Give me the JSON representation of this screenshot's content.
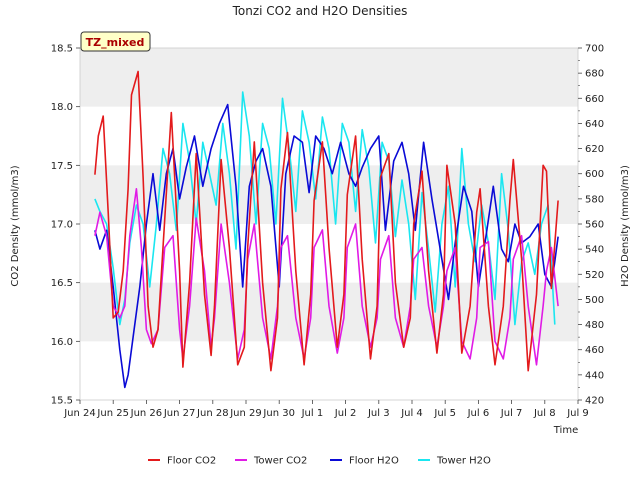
{
  "chart_data": {
    "type": "line",
    "title": "Tonzi CO2 and H2O Densities",
    "badge": "TZ_mixed",
    "xlabel": "Time",
    "ylabel_left": "CO2 Density (mmol/m3)",
    "ylabel_right": "H2O Density (mmol/m3)",
    "x_ticks": [
      "Jun 24",
      "Jun 25",
      "Jun 26",
      "Jun 27",
      "Jun 28",
      "Jun 29",
      "Jun 30",
      "Jul 1",
      "Jul 2",
      "Jul 3",
      "Jul 4",
      "Jul 5",
      "Jul 6",
      "Jul 7",
      "Jul 8",
      "Jul 9"
    ],
    "x_range_days": [
      0,
      15
    ],
    "ylim_left": [
      15.5,
      18.5
    ],
    "ylim_right": [
      420,
      700
    ],
    "y_ticks_left": [
      "15.5",
      "16.0",
      "16.5",
      "17.0",
      "17.5",
      "18.0",
      "18.5"
    ],
    "y_ticks_right": [
      "420",
      "440",
      "460",
      "480",
      "500",
      "520",
      "540",
      "560",
      "580",
      "600",
      "620",
      "640",
      "660",
      "680",
      "700"
    ],
    "band_ranges_left": [
      [
        16.0,
        16.5
      ],
      [
        17.0,
        17.5
      ],
      [
        18.0,
        18.5
      ]
    ],
    "series": [
      {
        "name": "Floor CO2",
        "axis": "left",
        "color": "#e31a1c",
        "x": [
          0.45,
          0.55,
          0.7,
          0.85,
          1.0,
          1.15,
          1.3,
          1.45,
          1.55,
          1.75,
          1.9,
          2.05,
          2.2,
          2.35,
          2.5,
          2.75,
          3.0,
          3.1,
          3.3,
          3.5,
          3.75,
          3.95,
          4.05,
          4.25,
          4.5,
          4.75,
          4.95,
          5.05,
          5.25,
          5.5,
          5.75,
          5.95,
          6.05,
          6.25,
          6.5,
          6.75,
          6.95,
          7.05,
          7.3,
          7.5,
          7.75,
          7.95,
          8.05,
          8.3,
          8.5,
          8.75,
          8.95,
          9.05,
          9.3,
          9.5,
          9.75,
          9.95,
          10.05,
          10.3,
          10.5,
          10.75,
          10.95,
          11.05,
          11.3,
          11.5,
          11.75,
          11.95,
          12.05,
          12.3,
          12.5,
          12.75,
          12.95,
          13.05,
          13.3,
          13.5,
          13.75,
          13.95,
          14.05,
          14.2,
          14.4
        ],
        "values": [
          17.42,
          17.75,
          17.92,
          17.1,
          16.2,
          16.25,
          16.6,
          17.3,
          18.1,
          18.3,
          17.4,
          16.3,
          15.95,
          16.1,
          16.8,
          17.95,
          16.6,
          15.78,
          16.5,
          17.6,
          16.4,
          15.88,
          16.3,
          17.55,
          16.8,
          15.8,
          15.95,
          16.8,
          17.7,
          16.5,
          15.75,
          16.2,
          17.3,
          17.78,
          16.6,
          15.8,
          16.4,
          17.2,
          17.7,
          16.8,
          15.95,
          16.4,
          17.25,
          17.75,
          16.7,
          15.85,
          16.3,
          17.4,
          17.6,
          16.5,
          15.95,
          16.2,
          17.0,
          17.45,
          16.6,
          15.9,
          16.4,
          17.5,
          17.0,
          15.9,
          16.3,
          17.1,
          17.3,
          16.3,
          15.8,
          16.3,
          17.2,
          17.55,
          16.7,
          15.75,
          16.4,
          17.5,
          17.45,
          16.45,
          17.2
        ]
      },
      {
        "name": "Tower CO2",
        "axis": "left",
        "color": "#e01be6",
        "x": [
          0.45,
          0.6,
          0.8,
          1.0,
          1.2,
          1.35,
          1.5,
          1.7,
          1.85,
          2.0,
          2.15,
          2.35,
          2.55,
          2.8,
          3.0,
          3.1,
          3.3,
          3.5,
          3.75,
          3.95,
          4.05,
          4.25,
          4.5,
          4.75,
          4.95,
          5.05,
          5.25,
          5.5,
          5.75,
          5.95,
          6.05,
          6.25,
          6.5,
          6.75,
          6.95,
          7.05,
          7.3,
          7.5,
          7.75,
          7.95,
          8.05,
          8.3,
          8.5,
          8.75,
          8.95,
          9.05,
          9.3,
          9.5,
          9.75,
          9.95,
          10.05,
          10.3,
          10.5,
          10.75,
          10.95,
          11.05,
          11.3,
          11.5,
          11.75,
          11.95,
          12.05,
          12.3,
          12.5,
          12.75,
          12.95,
          13.05,
          13.3,
          13.5,
          13.75,
          13.95,
          14.05,
          14.2,
          14.4
        ],
        "values": [
          16.9,
          17.1,
          16.9,
          16.3,
          16.2,
          16.3,
          16.9,
          17.3,
          16.8,
          16.1,
          15.98,
          16.1,
          16.8,
          16.9,
          16.1,
          15.85,
          16.3,
          17.05,
          16.6,
          15.95,
          16.2,
          17.0,
          16.5,
          15.85,
          16.1,
          16.7,
          17.0,
          16.2,
          15.85,
          16.3,
          16.8,
          16.9,
          16.2,
          15.85,
          16.2,
          16.8,
          16.95,
          16.3,
          15.9,
          16.2,
          16.8,
          17.0,
          16.3,
          15.95,
          16.2,
          16.7,
          16.9,
          16.2,
          15.95,
          16.3,
          16.7,
          16.8,
          16.3,
          15.95,
          16.3,
          16.6,
          16.8,
          16.0,
          15.85,
          16.2,
          16.8,
          16.85,
          16.0,
          15.85,
          16.2,
          16.7,
          16.9,
          16.3,
          15.8,
          16.3,
          16.6,
          16.8,
          16.3
        ]
      },
      {
        "name": "Floor H2O",
        "axis": "right",
        "color": "#0a0ad6",
        "x": [
          0.45,
          0.6,
          0.8,
          1.0,
          1.2,
          1.35,
          1.45,
          1.6,
          1.8,
          2.0,
          2.2,
          2.4,
          2.6,
          2.8,
          3.0,
          3.2,
          3.45,
          3.7,
          3.95,
          4.2,
          4.45,
          4.7,
          4.9,
          5.1,
          5.3,
          5.5,
          5.75,
          6.0,
          6.2,
          6.45,
          6.7,
          6.9,
          7.1,
          7.35,
          7.6,
          7.85,
          8.1,
          8.3,
          8.5,
          8.75,
          9.0,
          9.2,
          9.45,
          9.7,
          9.9,
          10.1,
          10.35,
          10.6,
          10.85,
          11.1,
          11.3,
          11.55,
          11.8,
          12.0,
          12.2,
          12.45,
          12.7,
          12.9,
          13.1,
          13.3,
          13.55,
          13.8,
          14.0,
          14.2,
          14.4
        ],
        "values": [
          555,
          540,
          555,
          510,
          460,
          430,
          440,
          470,
          510,
          560,
          600,
          555,
          600,
          620,
          580,
          605,
          630,
          590,
          620,
          640,
          655,
          590,
          510,
          590,
          610,
          620,
          590,
          510,
          600,
          630,
          625,
          585,
          630,
          620,
          600,
          625,
          600,
          590,
          605,
          620,
          630,
          555,
          610,
          625,
          600,
          555,
          625,
          580,
          540,
          500,
          545,
          590,
          570,
          510,
          545,
          590,
          540,
          530,
          560,
          545,
          550,
          560,
          520,
          510,
          550
        ]
      },
      {
        "name": "Tower H2O",
        "axis": "right",
        "color": "#1ae6f0",
        "x": [
          0.45,
          0.6,
          0.8,
          1.0,
          1.2,
          1.35,
          1.5,
          1.7,
          1.9,
          2.1,
          2.3,
          2.5,
          2.7,
          2.9,
          3.1,
          3.3,
          3.5,
          3.7,
          3.9,
          4.1,
          4.3,
          4.5,
          4.7,
          4.9,
          5.1,
          5.3,
          5.5,
          5.7,
          5.9,
          6.1,
          6.3,
          6.5,
          6.7,
          6.9,
          7.1,
          7.3,
          7.5,
          7.7,
          7.9,
          8.1,
          8.3,
          8.5,
          8.7,
          8.9,
          9.1,
          9.3,
          9.5,
          9.7,
          9.9,
          10.1,
          10.3,
          10.5,
          10.7,
          10.9,
          11.1,
          11.3,
          11.5,
          11.7,
          11.9,
          12.1,
          12.3,
          12.5,
          12.7,
          12.9,
          13.1,
          13.3,
          13.5,
          13.7,
          13.9,
          14.1,
          14.3
        ],
        "values": [
          580,
          570,
          560,
          525,
          480,
          500,
          545,
          575,
          560,
          510,
          560,
          620,
          600,
          555,
          640,
          610,
          560,
          625,
          600,
          575,
          640,
          600,
          540,
          665,
          630,
          560,
          640,
          620,
          560,
          660,
          620,
          570,
          650,
          625,
          580,
          645,
          620,
          560,
          640,
          625,
          570,
          635,
          605,
          545,
          625,
          610,
          550,
          595,
          560,
          500,
          585,
          540,
          490,
          560,
          590,
          510,
          620,
          560,
          530,
          575,
          545,
          500,
          600,
          555,
          480,
          530,
          545,
          520,
          560,
          575,
          480
        ]
      }
    ]
  }
}
